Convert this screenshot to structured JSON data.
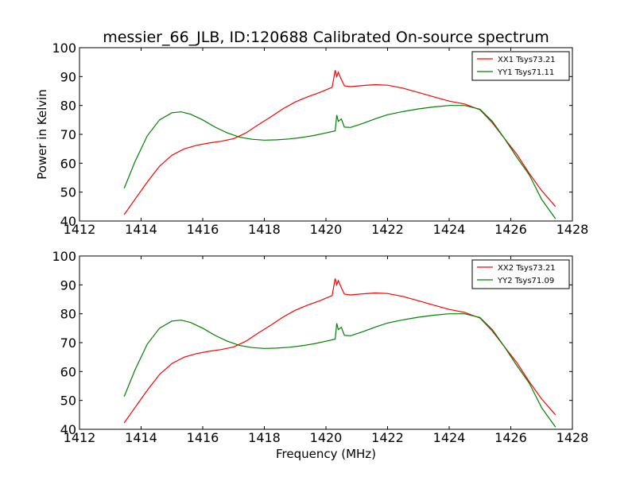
{
  "figure": {
    "title": "messier_66_JLB, ID:120688 Calibrated On-source spectrum",
    "xlabel": "Frequency (MHz)",
    "ylabel": "Power in Kelvin"
  },
  "colors": {
    "red": "#ff0000",
    "green": "#008000"
  },
  "chart_data": [
    {
      "type": "line",
      "title": "messier_66_JLB, ID:120688 Calibrated On-source spectrum",
      "xlabel": "",
      "ylabel": "Power in Kelvin",
      "xlim": [
        1412,
        1428
      ],
      "ylim": [
        40,
        100
      ],
      "xticks": [
        1412,
        1414,
        1416,
        1418,
        1420,
        1422,
        1424,
        1426,
        1428
      ],
      "yticks": [
        40,
        50,
        60,
        70,
        80,
        90,
        100
      ],
      "grid": false,
      "legend_position": "top-right",
      "series": [
        {
          "name": "XX1 Tsys73.21",
          "color": "#ff0000",
          "x": [
            1413.45,
            1413.8,
            1414.2,
            1414.6,
            1415.0,
            1415.4,
            1415.8,
            1416.2,
            1416.6,
            1417.0,
            1417.4,
            1417.8,
            1418.2,
            1418.6,
            1419.0,
            1419.4,
            1419.8,
            1420.2,
            1420.3,
            1420.35,
            1420.4,
            1420.5,
            1420.6,
            1420.8,
            1421.2,
            1421.6,
            1422.0,
            1422.5,
            1423.0,
            1423.5,
            1424.0,
            1424.5,
            1425.0,
            1425.4,
            1425.8,
            1426.2,
            1426.6,
            1427.0,
            1427.45
          ],
          "y": [
            42.2,
            47.5,
            53.5,
            59.0,
            62.8,
            65.0,
            66.2,
            67.0,
            67.6,
            68.5,
            70.5,
            73.3,
            76.0,
            78.8,
            81.2,
            83.0,
            84.5,
            86.3,
            92.2,
            90.0,
            91.5,
            89.0,
            86.8,
            86.5,
            86.9,
            87.2,
            87.0,
            86.0,
            84.5,
            83.0,
            81.5,
            80.5,
            78.5,
            74.0,
            68.5,
            63.0,
            56.5,
            50.5,
            45.0
          ]
        },
        {
          "name": "YY1 Tsys71.11",
          "color": "#008000",
          "x": [
            1413.45,
            1413.8,
            1414.2,
            1414.6,
            1415.0,
            1415.3,
            1415.6,
            1416.0,
            1416.4,
            1416.8,
            1417.2,
            1417.6,
            1418.0,
            1418.4,
            1418.8,
            1419.2,
            1419.6,
            1420.0,
            1420.3,
            1420.35,
            1420.4,
            1420.5,
            1420.6,
            1420.8,
            1421.2,
            1421.6,
            1422.0,
            1422.5,
            1423.0,
            1423.5,
            1424.0,
            1424.5,
            1425.0,
            1425.4,
            1425.8,
            1426.2,
            1426.6,
            1427.0,
            1427.45
          ],
          "y": [
            51.3,
            60.5,
            69.5,
            75.0,
            77.5,
            77.8,
            77.0,
            75.0,
            72.5,
            70.5,
            69.0,
            68.3,
            68.0,
            68.1,
            68.4,
            68.9,
            69.6,
            70.5,
            71.2,
            76.7,
            74.5,
            75.3,
            72.5,
            72.4,
            73.8,
            75.4,
            76.8,
            77.9,
            78.8,
            79.5,
            80.0,
            80.0,
            78.7,
            74.5,
            68.5,
            62.0,
            56.0,
            47.5,
            40.8
          ]
        }
      ]
    },
    {
      "type": "line",
      "title": "",
      "xlabel": "Frequency (MHz)",
      "ylabel": "",
      "xlim": [
        1412,
        1428
      ],
      "ylim": [
        40,
        100
      ],
      "xticks": [
        1412,
        1414,
        1416,
        1418,
        1420,
        1422,
        1424,
        1426,
        1428
      ],
      "yticks": [
        40,
        50,
        60,
        70,
        80,
        90,
        100
      ],
      "grid": false,
      "legend_position": "top-right",
      "series": [
        {
          "name": "XX2 Tsys73.21",
          "color": "#ff0000",
          "x": [
            1413.45,
            1413.8,
            1414.2,
            1414.6,
            1415.0,
            1415.4,
            1415.8,
            1416.2,
            1416.6,
            1417.0,
            1417.4,
            1417.8,
            1418.2,
            1418.6,
            1419.0,
            1419.4,
            1419.8,
            1420.2,
            1420.3,
            1420.35,
            1420.4,
            1420.5,
            1420.6,
            1420.8,
            1421.2,
            1421.6,
            1422.0,
            1422.5,
            1423.0,
            1423.5,
            1424.0,
            1424.5,
            1425.0,
            1425.4,
            1425.8,
            1426.2,
            1426.6,
            1427.0,
            1427.45
          ],
          "y": [
            42.2,
            47.5,
            53.5,
            59.0,
            62.8,
            65.0,
            66.2,
            67.0,
            67.6,
            68.5,
            70.5,
            73.3,
            76.0,
            78.8,
            81.2,
            83.0,
            84.5,
            86.3,
            92.2,
            90.0,
            91.5,
            89.0,
            86.8,
            86.5,
            86.9,
            87.2,
            87.0,
            86.0,
            84.5,
            83.0,
            81.5,
            80.5,
            78.5,
            74.0,
            68.5,
            63.0,
            56.5,
            50.5,
            45.0
          ]
        },
        {
          "name": "YY2 Tsys71.09",
          "color": "#008000",
          "x": [
            1413.45,
            1413.8,
            1414.2,
            1414.6,
            1415.0,
            1415.3,
            1415.6,
            1416.0,
            1416.4,
            1416.8,
            1417.2,
            1417.6,
            1418.0,
            1418.4,
            1418.8,
            1419.2,
            1419.6,
            1420.0,
            1420.3,
            1420.35,
            1420.4,
            1420.5,
            1420.6,
            1420.8,
            1421.2,
            1421.6,
            1422.0,
            1422.5,
            1423.0,
            1423.5,
            1424.0,
            1424.5,
            1425.0,
            1425.4,
            1425.8,
            1426.2,
            1426.6,
            1427.0,
            1427.45
          ],
          "y": [
            51.3,
            60.5,
            69.5,
            75.0,
            77.5,
            77.8,
            77.0,
            75.0,
            72.5,
            70.5,
            69.0,
            68.3,
            68.0,
            68.1,
            68.4,
            68.9,
            69.6,
            70.5,
            71.2,
            76.7,
            74.5,
            75.3,
            72.5,
            72.4,
            73.8,
            75.4,
            76.8,
            77.9,
            78.8,
            79.5,
            80.0,
            80.0,
            78.7,
            74.5,
            68.5,
            62.0,
            56.0,
            47.5,
            40.8
          ]
        }
      ]
    }
  ]
}
